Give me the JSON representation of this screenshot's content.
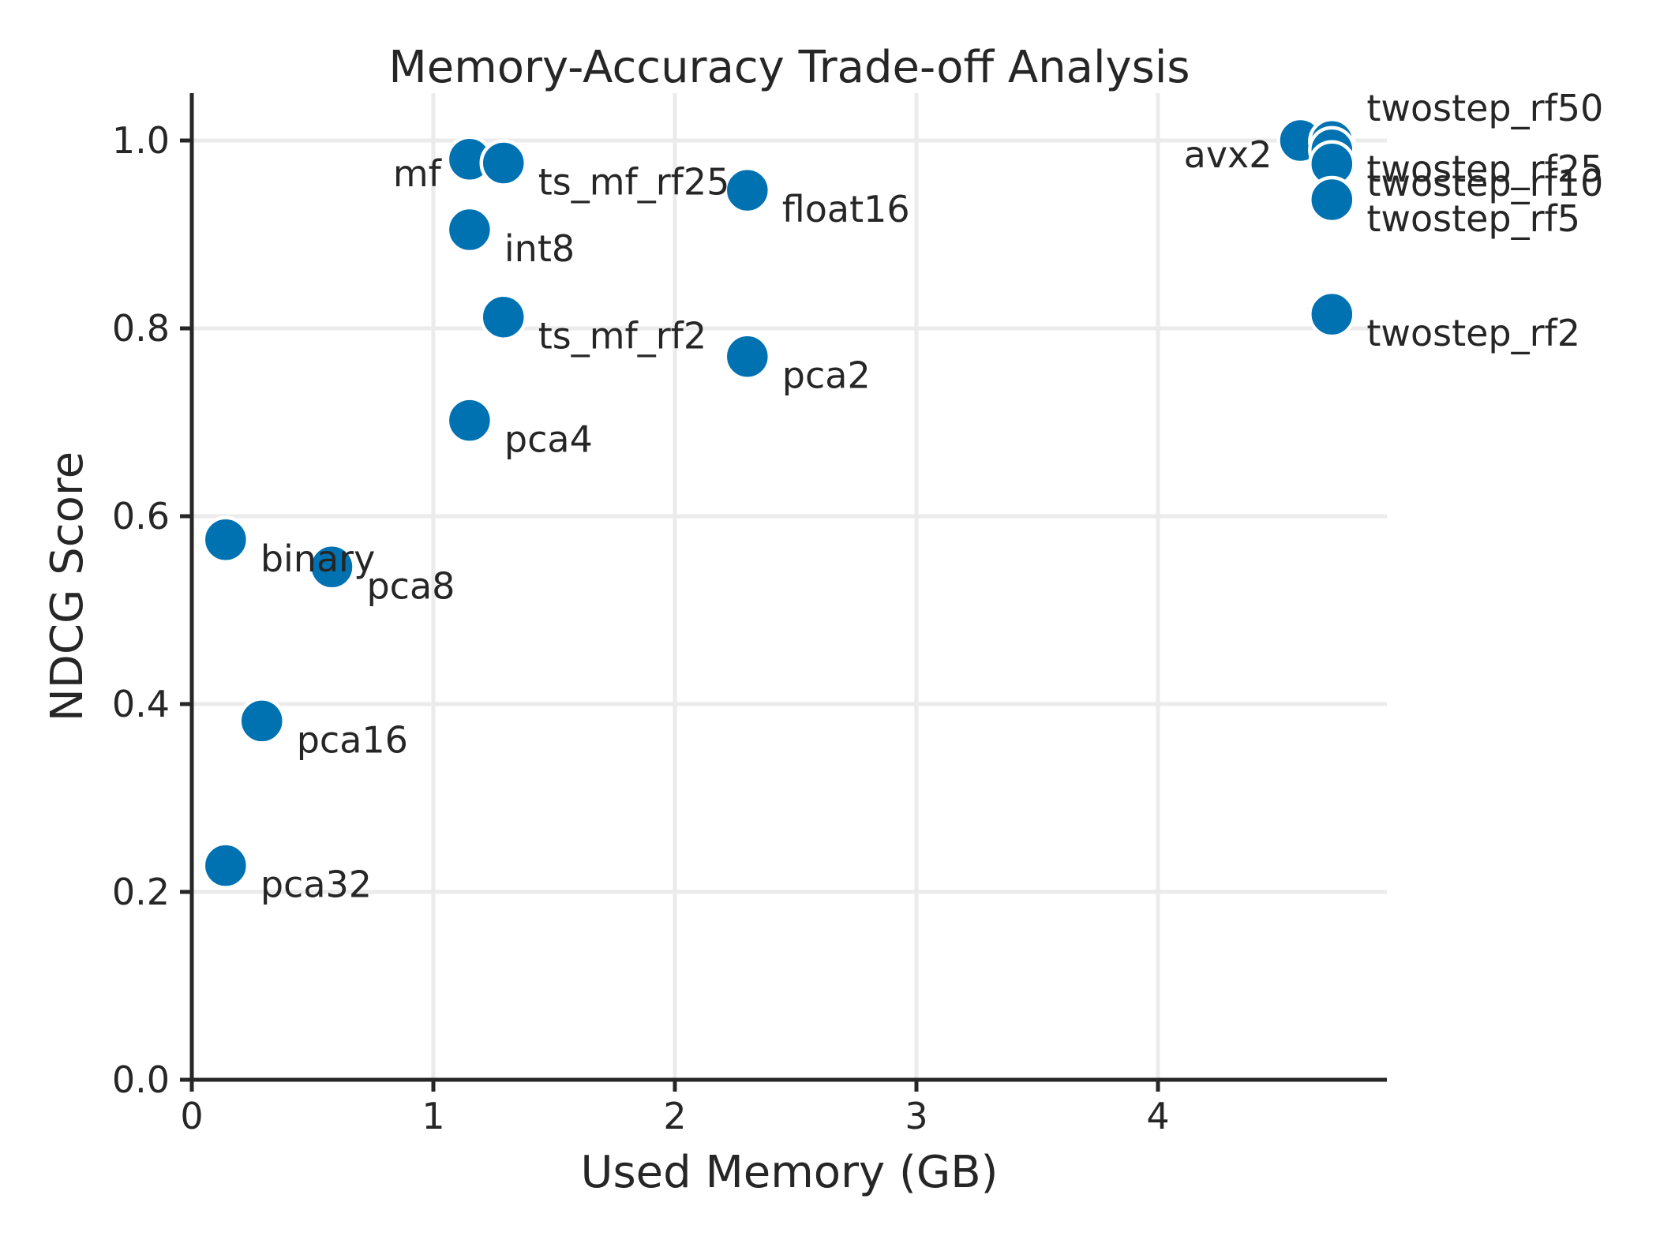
{
  "chart_data": {
    "type": "scatter",
    "title": "Memory-Accuracy Trade-off Analysis",
    "xlabel": "Used Memory (GB)",
    "ylabel": "NDCG Score",
    "xlim": [
      0,
      4.95
    ],
    "ylim": [
      0,
      1.05
    ],
    "xticks": [
      0,
      1,
      2,
      3,
      4
    ],
    "yticks": [
      0.0,
      0.2,
      0.4,
      0.6,
      0.8,
      1.0
    ],
    "xtick_labels": [
      "0",
      "1",
      "2",
      "3",
      "4"
    ],
    "ytick_labels": [
      "0.0",
      "0.2",
      "0.4",
      "0.6",
      "0.8",
      "1.0"
    ],
    "grid": true,
    "color": "#0072b2",
    "points": [
      {
        "label": "mf",
        "x": 1.15,
        "y": 0.98,
        "label_pos": "left"
      },
      {
        "label": "ts_mf_rf25",
        "x": 1.29,
        "y": 0.976,
        "label_pos": "right"
      },
      {
        "label": "float16",
        "x": 2.3,
        "y": 0.947,
        "label_pos": "right"
      },
      {
        "label": "int8",
        "x": 1.15,
        "y": 0.905,
        "label_pos": "right"
      },
      {
        "label": "ts_mf_rf2",
        "x": 1.29,
        "y": 0.812,
        "label_pos": "right"
      },
      {
        "label": "pca2",
        "x": 2.3,
        "y": 0.77,
        "label_pos": "right"
      },
      {
        "label": "pca4",
        "x": 1.15,
        "y": 0.702,
        "label_pos": "right"
      },
      {
        "label": "binary",
        "x": 0.14,
        "y": 0.575,
        "label_pos": "right"
      },
      {
        "label": "pca8",
        "x": 0.58,
        "y": 0.546,
        "label_pos": "right"
      },
      {
        "label": "pca16",
        "x": 0.29,
        "y": 0.382,
        "label_pos": "right"
      },
      {
        "label": "pca32",
        "x": 0.14,
        "y": 0.228,
        "label_pos": "right"
      },
      {
        "label": "avx2",
        "x": 4.59,
        "y": 1.0,
        "label_pos": "left"
      },
      {
        "label": "twostep_rf50",
        "x": 4.72,
        "y": 0.999,
        "label_pos": "right-high"
      },
      {
        "label": "twostep_rf25",
        "x": 4.72,
        "y": 0.99,
        "label_pos": "right"
      },
      {
        "label": "twostep_rf10",
        "x": 4.72,
        "y": 0.975,
        "label_pos": "right"
      },
      {
        "label": "twostep_rf5",
        "x": 4.72,
        "y": 0.937,
        "label_pos": "right"
      },
      {
        "label": "twostep_rf2",
        "x": 4.72,
        "y": 0.815,
        "label_pos": "right"
      }
    ]
  }
}
